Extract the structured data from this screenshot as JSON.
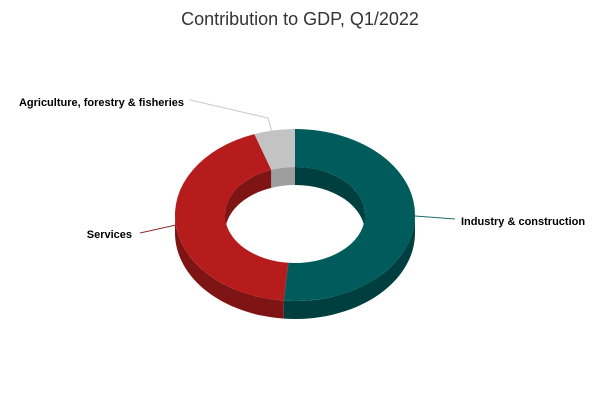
{
  "chart_data": {
    "type": "pie",
    "variant": "3d-donut",
    "title": "Contribution to GDP, Q1/2022",
    "series": [
      {
        "name": "",
        "slices": [
          {
            "label": "Industry & construction",
            "value": 51.5,
            "color": "#005c5c",
            "side_color": "#003f3f"
          },
          {
            "label": "Services",
            "value": 43.0,
            "color": "#b71c1c",
            "side_color": "#7e1414"
          },
          {
            "label": "Agriculture, forestry & fisheries",
            "value": 5.5,
            "color": "#c3c3c3",
            "side_color": "#9e9e9e"
          }
        ]
      }
    ],
    "legend": "none",
    "leader_line_colors": {
      "Industry & construction": "#1f6b6b",
      "Services": "#8e2a2a",
      "Agriculture, forestry & fisheries": "#c8c8c8"
    }
  }
}
